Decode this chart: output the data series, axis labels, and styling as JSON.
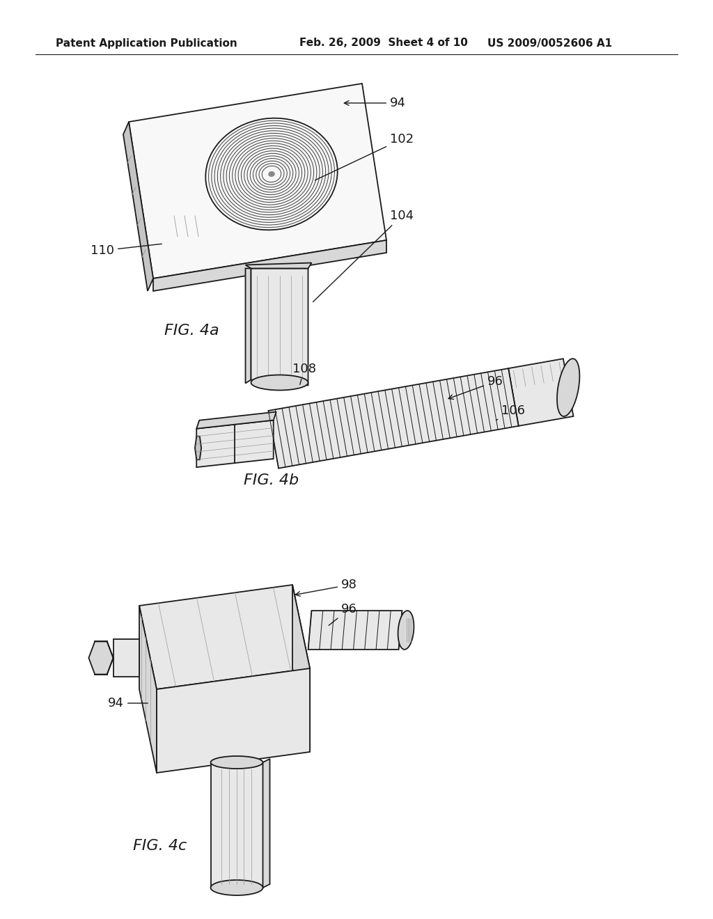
{
  "background_color": "#ffffff",
  "header_left": "Patent Application Publication",
  "header_center": "Feb. 26, 2009  Sheet 4 of 10",
  "header_right": "US 2009/0052606 A1",
  "header_fontsize": 11,
  "fig_label_fontsize": 16,
  "annotation_fontsize": 13,
  "lw_main": 1.3,
  "lw_thin": 0.7,
  "color_main": "#1a1a1a",
  "color_light": "#999999",
  "face_white": "#f8f8f8",
  "face_light": "#e8e8e8",
  "face_mid": "#d8d8d8",
  "face_dark": "#c5c5c5"
}
